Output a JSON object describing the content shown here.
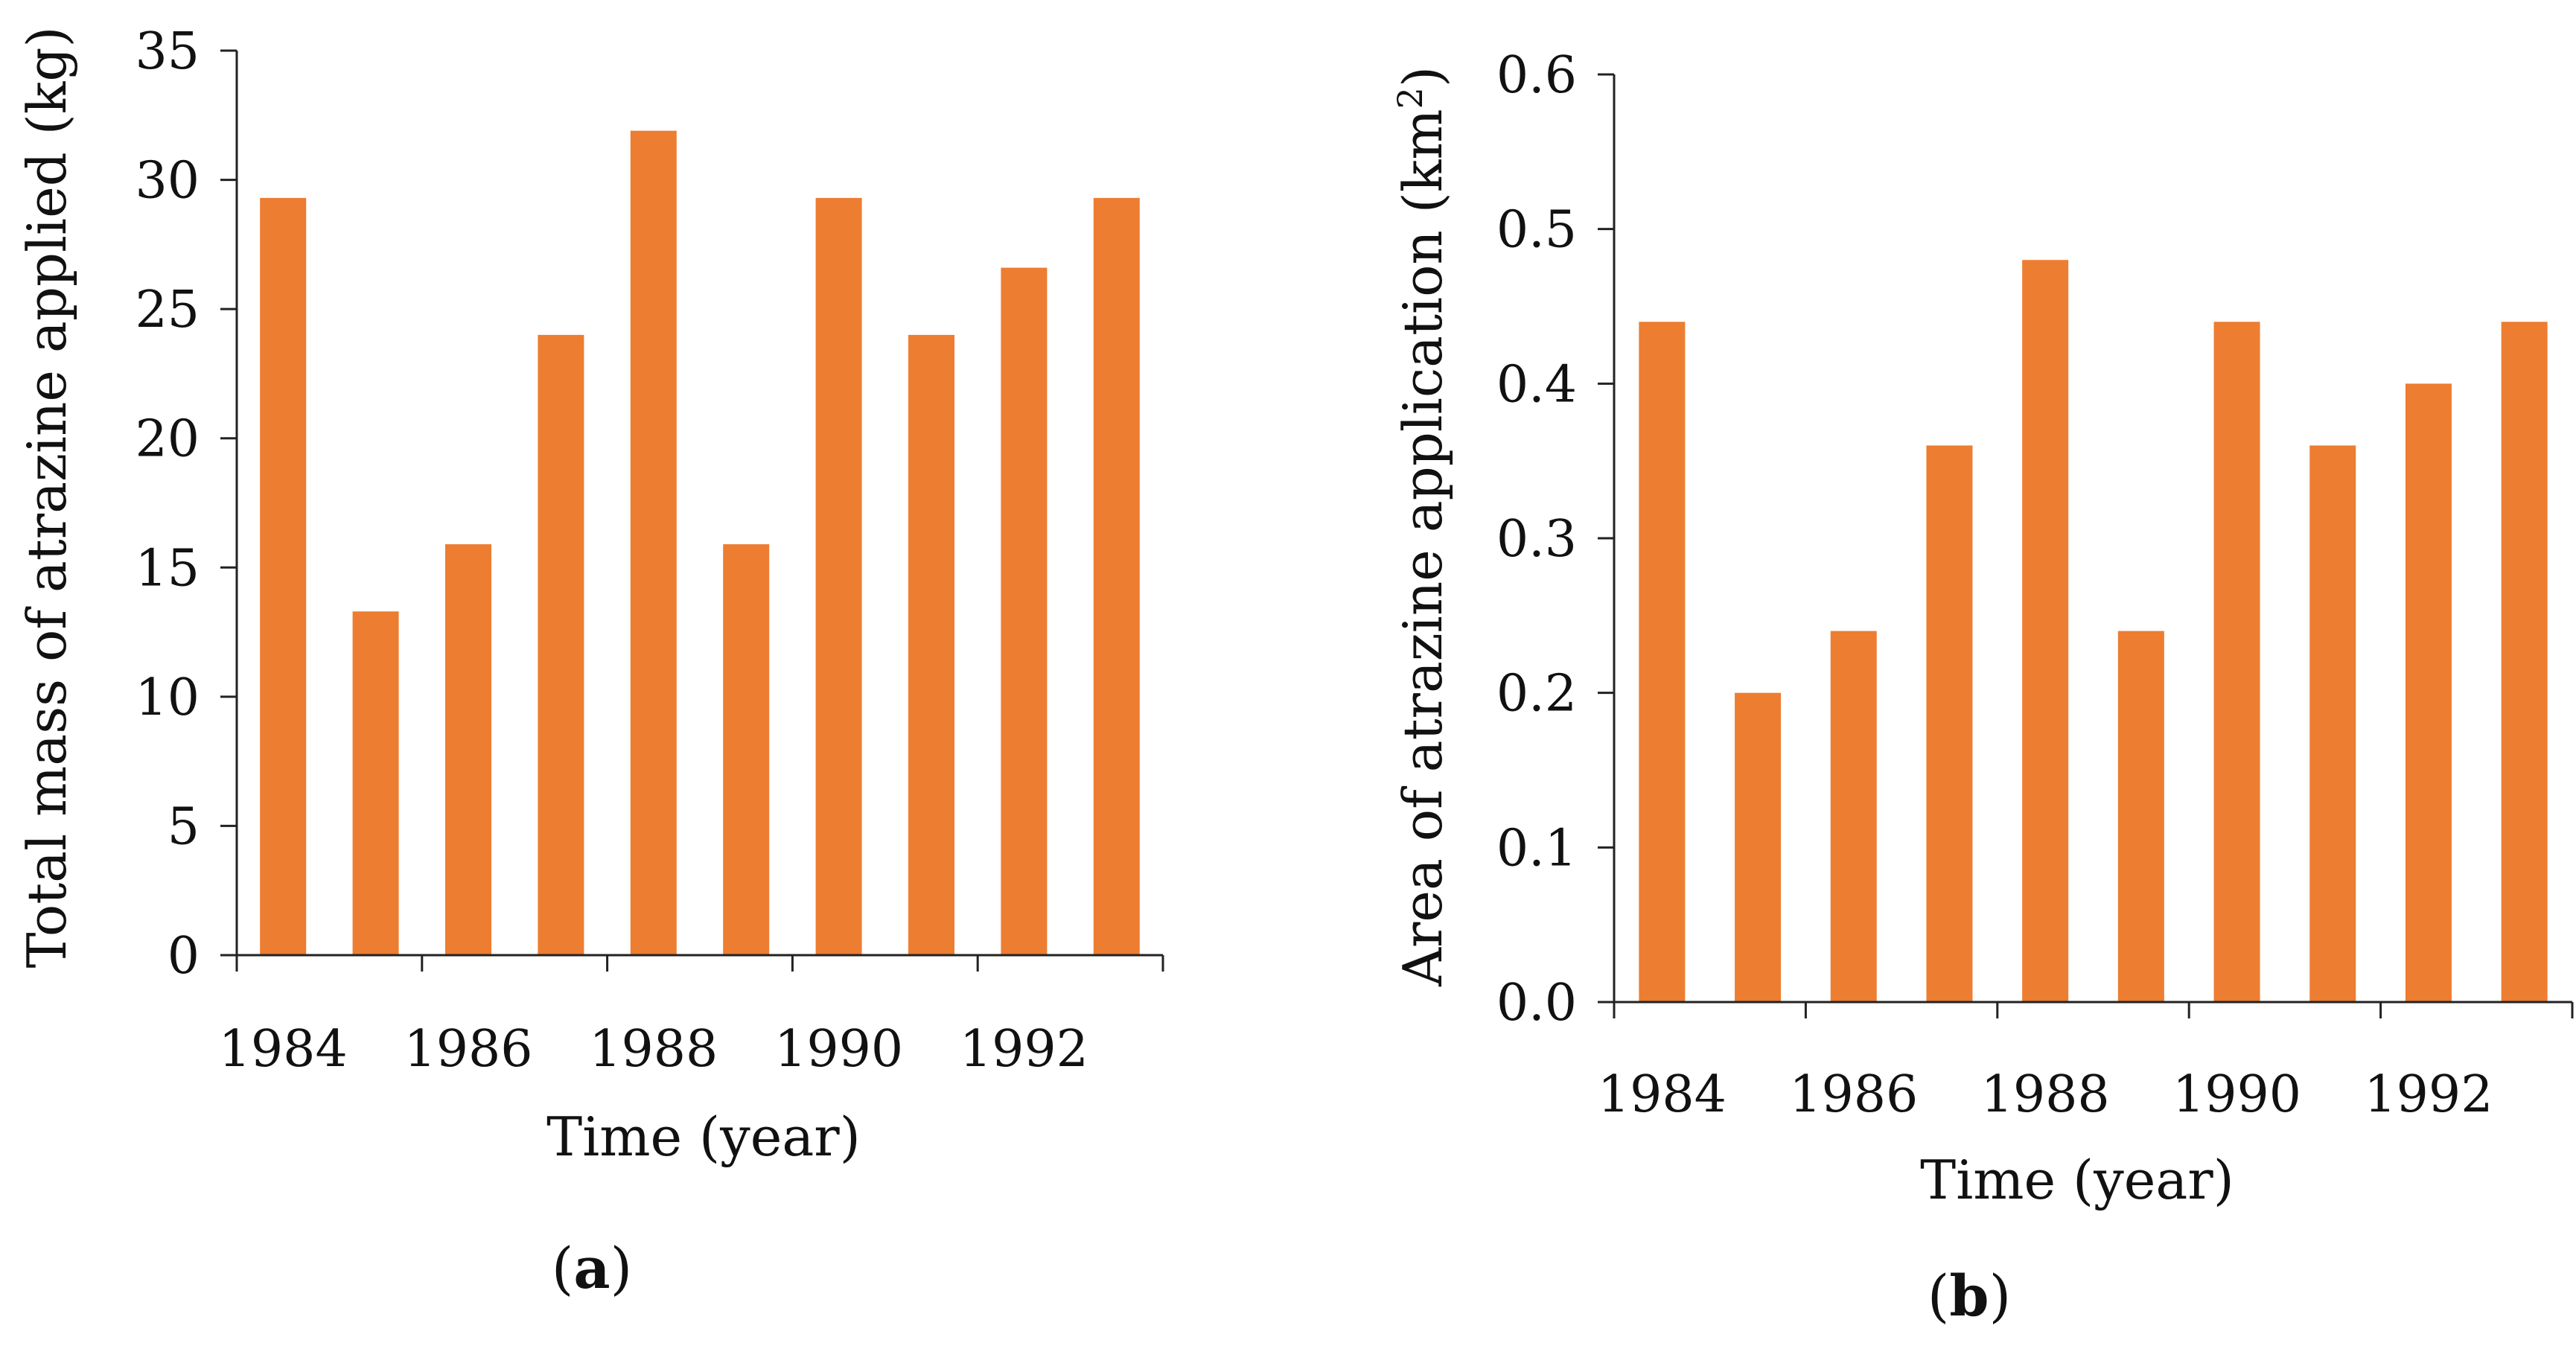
{
  "chart_data": [
    {
      "type": "bar",
      "panel": "a",
      "categories": [
        "1984",
        "1985",
        "1986",
        "1987",
        "1988",
        "1989",
        "1990",
        "1991",
        "1992",
        "1993"
      ],
      "values": [
        29.3,
        13.3,
        15.9,
        24.0,
        31.9,
        15.9,
        29.3,
        24.0,
        26.6,
        29.3
      ],
      "ylabel": "Total mass of atrazine applied (kg)",
      "xlabel": "Time (year)",
      "ylim": [
        0,
        35
      ],
      "yticks": [
        "0",
        "5",
        "10",
        "15",
        "20",
        "25",
        "30",
        "35"
      ],
      "xtick_labels": [
        "1984",
        "1986",
        "1988",
        "1990",
        "1992"
      ],
      "bar_color": "#ed7d31",
      "caption": {
        "open": "(",
        "letter": "a",
        "close": ")"
      }
    },
    {
      "type": "bar",
      "panel": "b",
      "categories": [
        "1984",
        "1985",
        "1986",
        "1987",
        "1988",
        "1989",
        "1990",
        "1991",
        "1992",
        "1993"
      ],
      "values": [
        0.44,
        0.2,
        0.24,
        0.36,
        0.48,
        0.24,
        0.44,
        0.36,
        0.4,
        0.44
      ],
      "ylabel_main": "Area of atrazine application (km",
      "ylabel_sup": "2",
      "ylabel_close": ")",
      "xlabel": "Time (year)",
      "ylim": [
        0,
        0.6
      ],
      "yticks": [
        "0.0",
        "0.1",
        "0.2",
        "0.3",
        "0.4",
        "0.5",
        "0.6"
      ],
      "xtick_labels": [
        "1984",
        "1986",
        "1988",
        "1990",
        "1992"
      ],
      "bar_color": "#ed7d31",
      "caption": {
        "open": "(",
        "letter": "b",
        "close": ")"
      }
    }
  ]
}
